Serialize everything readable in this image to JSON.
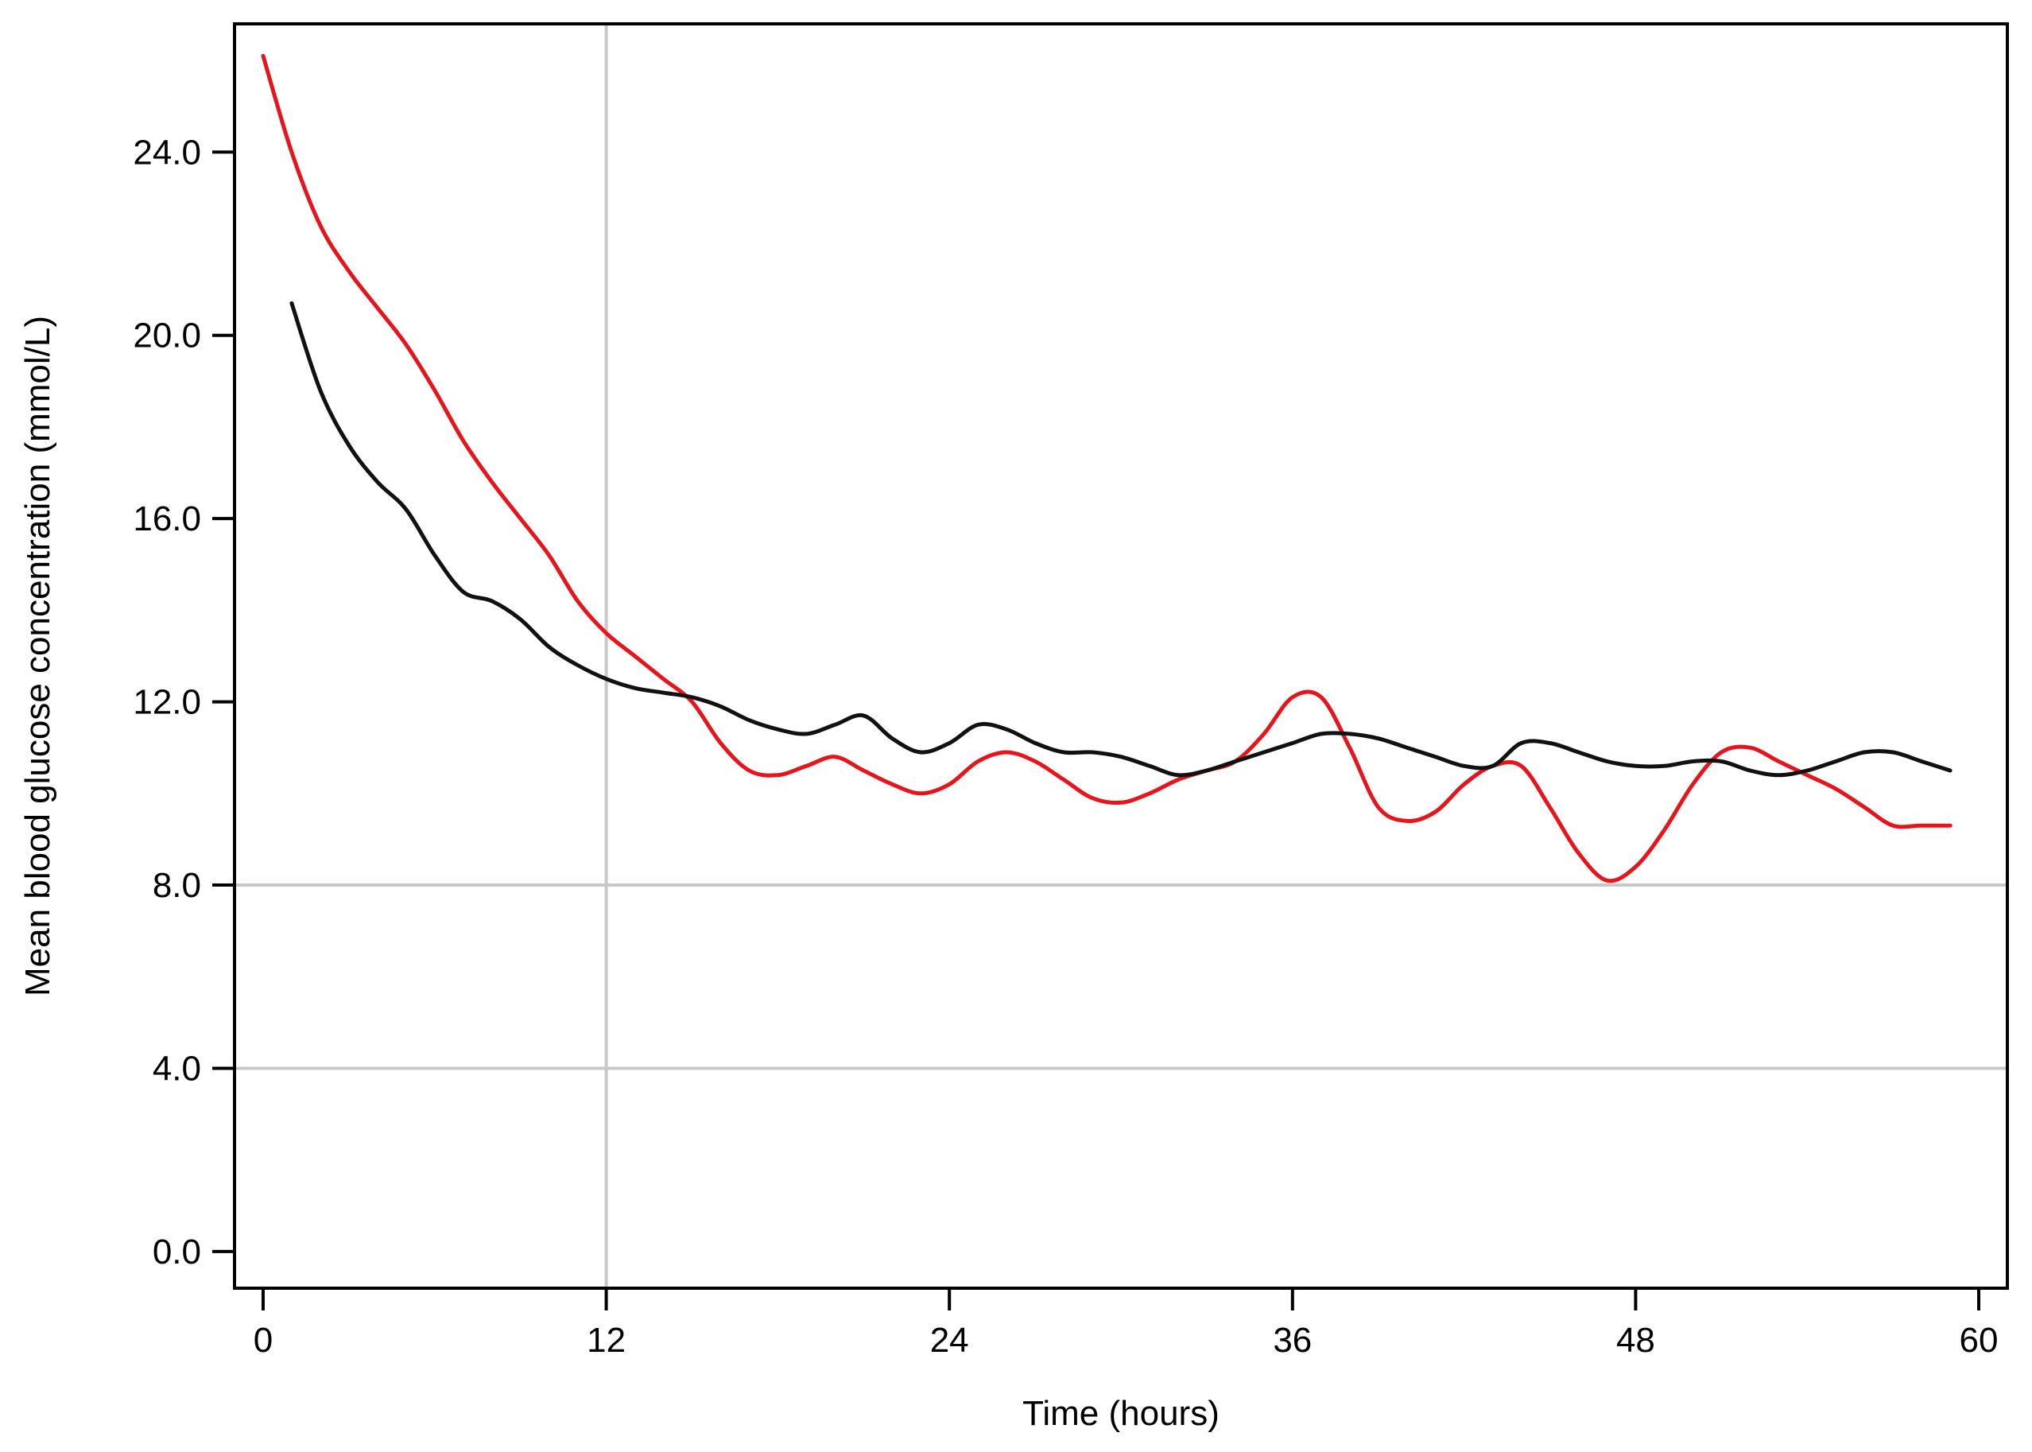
{
  "chart_data": {
    "type": "line",
    "title": "",
    "xlabel": "Time (hours)",
    "ylabel": "Mean blood glucose concentration (mmol/L)",
    "xlim": [
      -1,
      61
    ],
    "ylim": [
      -0.8,
      26.8
    ],
    "xticks": [
      0,
      12,
      24,
      36,
      48,
      60
    ],
    "xtick_labels": [
      "0",
      "12",
      "24",
      "36",
      "48",
      "60"
    ],
    "yticks": [
      0,
      4,
      8,
      12,
      16,
      20,
      24
    ],
    "ytick_labels": [
      "0.0",
      "4.0",
      "8.0",
      "12.0",
      "16.0",
      "20.0",
      "24.0"
    ],
    "grid": true,
    "reference_lines": {
      "vertical_x": [
        12
      ],
      "horizontal_y": [
        4,
        8
      ],
      "color": "#c8c8c8"
    },
    "series": [
      {
        "color": "#e8141b",
        "x": [
          0,
          1,
          2,
          3,
          4,
          5,
          6,
          7,
          8,
          9,
          10,
          11,
          12,
          13,
          14,
          15,
          16,
          17,
          18,
          19,
          20,
          21,
          22,
          23,
          24,
          25,
          26,
          27,
          28,
          29,
          30,
          31,
          32,
          33,
          34,
          35,
          36,
          37,
          38,
          39,
          40,
          41,
          42,
          43,
          44,
          45,
          46,
          47,
          48,
          49,
          50,
          51,
          52,
          53,
          54,
          55,
          56,
          57,
          58,
          59
        ],
        "y": [
          26.1,
          24.0,
          22.4,
          21.4,
          20.6,
          19.8,
          18.8,
          17.7,
          16.8,
          16.0,
          15.2,
          14.2,
          13.5,
          13.0,
          12.5,
          12.0,
          11.1,
          10.5,
          10.4,
          10.6,
          10.8,
          10.5,
          10.2,
          10.0,
          10.2,
          10.7,
          10.9,
          10.7,
          10.3,
          9.9,
          9.8,
          10.0,
          10.3,
          10.5,
          10.7,
          11.3,
          12.1,
          12.1,
          11.0,
          9.7,
          9.4,
          9.6,
          10.2,
          10.6,
          10.6,
          9.7,
          8.7,
          8.1,
          8.4,
          9.2,
          10.2,
          10.9,
          11.0,
          10.7,
          10.4,
          10.1,
          9.7,
          9.3,
          9.3,
          9.3
        ]
      },
      {
        "color": "#111111",
        "x": [
          1,
          2,
          3,
          4,
          5,
          6,
          7,
          8,
          9,
          10,
          11,
          12,
          13,
          14,
          15,
          16,
          17,
          18,
          19,
          20,
          21,
          22,
          23,
          24,
          25,
          26,
          27,
          28,
          29,
          30,
          31,
          32,
          33,
          34,
          35,
          36,
          37,
          38,
          39,
          40,
          41,
          42,
          43,
          44,
          45,
          46,
          47,
          48,
          49,
          50,
          51,
          52,
          53,
          54,
          55,
          56,
          57,
          58,
          59
        ],
        "y": [
          20.7,
          18.8,
          17.6,
          16.8,
          16.2,
          15.2,
          14.4,
          14.2,
          13.8,
          13.2,
          12.8,
          12.5,
          12.3,
          12.2,
          12.1,
          11.9,
          11.6,
          11.4,
          11.3,
          11.5,
          11.7,
          11.2,
          10.9,
          11.1,
          11.5,
          11.4,
          11.1,
          10.9,
          10.9,
          10.8,
          10.6,
          10.4,
          10.5,
          10.7,
          10.9,
          11.1,
          11.3,
          11.3,
          11.2,
          11.0,
          10.8,
          10.6,
          10.6,
          11.1,
          11.1,
          10.9,
          10.7,
          10.6,
          10.6,
          10.7,
          10.7,
          10.5,
          10.4,
          10.5,
          10.7,
          10.9,
          10.9,
          10.7,
          10.5
        ]
      }
    ]
  }
}
